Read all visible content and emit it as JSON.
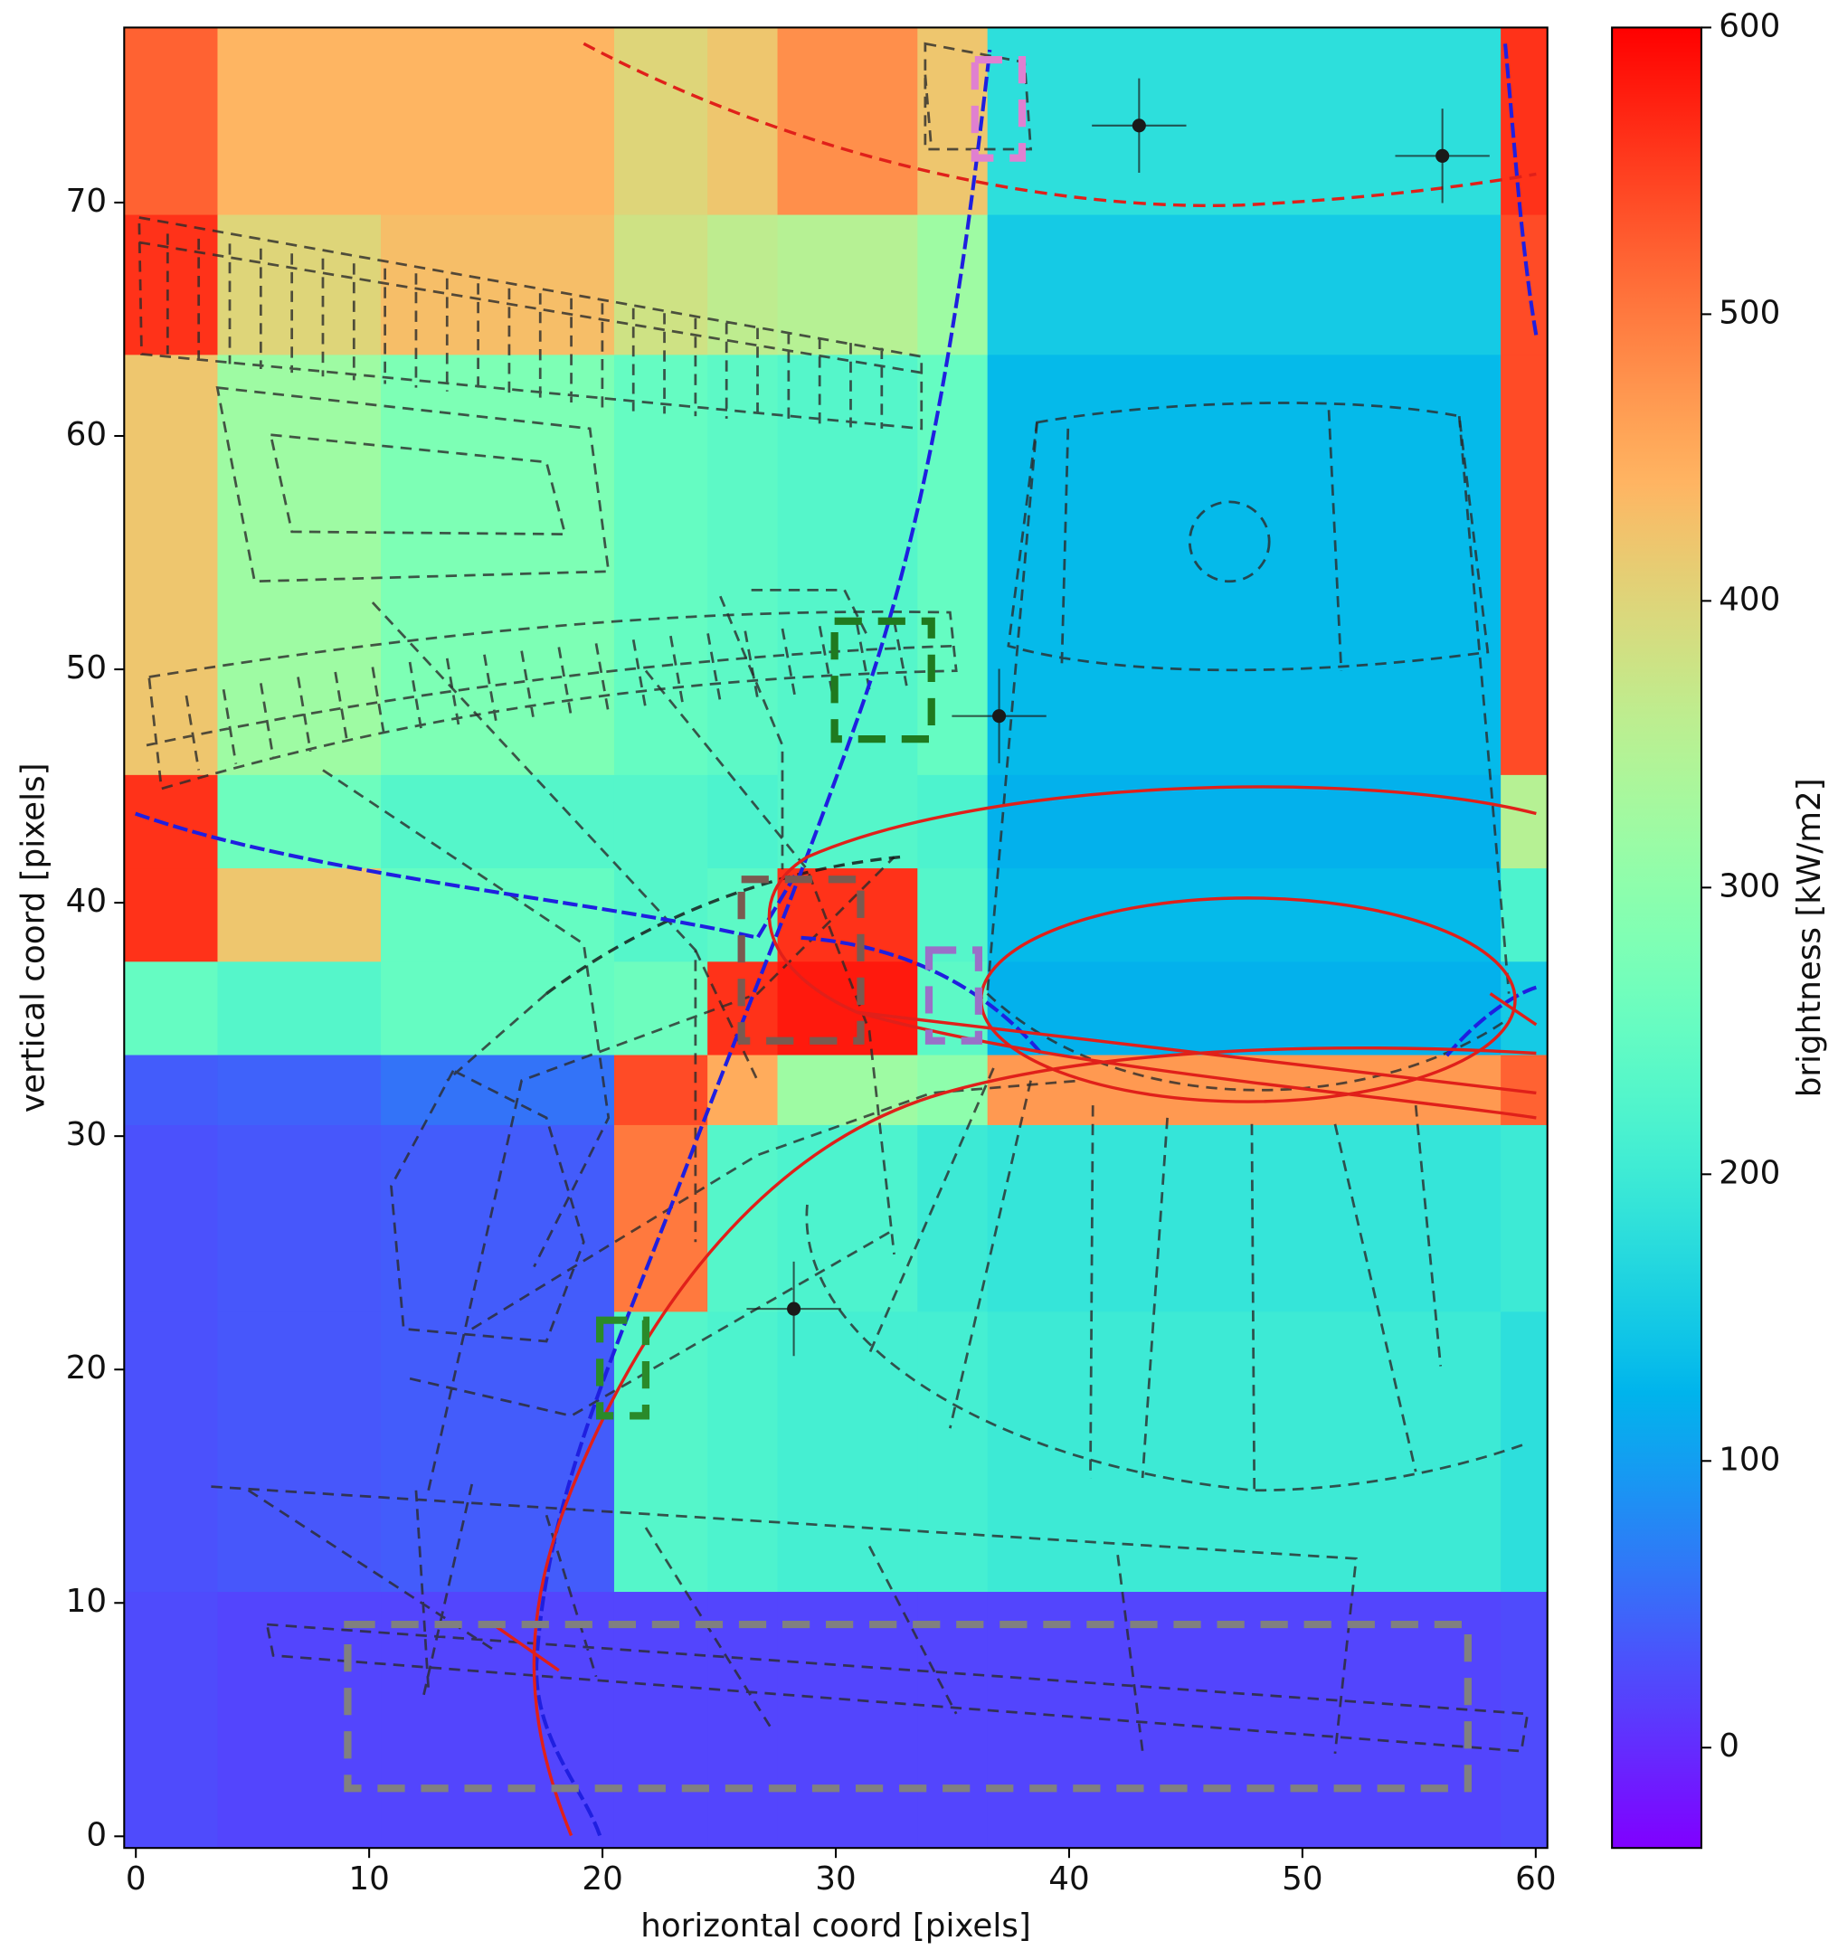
{
  "chart_data": {
    "type": "heatmap",
    "xlabel": "horizontal coord [pixels]",
    "ylabel": "vertical coord [pixels]",
    "colorbar_label": "brightness [kW/m2]",
    "colormap": "rainbow",
    "x_edges": [
      -0.5,
      3.5,
      10.5,
      20.5,
      24.5,
      27.5,
      33.5,
      36.5,
      58.5,
      60.5
    ],
    "y_edges": [
      -0.5,
      10.5,
      22.5,
      30.5,
      33.5,
      37.5,
      41.5,
      45.5,
      63.5,
      69.5,
      77.5
    ],
    "z": [
      [
        25,
        20,
        20,
        20,
        20,
        20,
        20,
        20,
        25
      ],
      [
        30,
        35,
        40,
        230,
        220,
        210,
        210,
        200,
        180
      ],
      [
        30,
        35,
        40,
        500,
        230,
        220,
        200,
        190,
        200
      ],
      [
        40,
        45,
        60,
        540,
        450,
        320,
        300,
        470,
        520
      ],
      [
        250,
        230,
        250,
        260,
        560,
        580,
        240,
        120,
        150
      ],
      [
        560,
        420,
        250,
        230,
        240,
        560,
        230,
        130,
        220
      ],
      [
        560,
        260,
        230,
        230,
        220,
        230,
        220,
        120,
        350
      ],
      [
        420,
        320,
        280,
        250,
        240,
        230,
        250,
        130,
        540
      ],
      [
        560,
        400,
        430,
        380,
        360,
        350,
        320,
        150,
        540
      ],
      [
        520,
        440,
        440,
        400,
        420,
        480,
        420,
        180,
        560
      ]
    ],
    "xlim": [
      -0.5,
      60.5
    ],
    "ylim": [
      -0.5,
      77.5
    ],
    "xticks": [
      0,
      10,
      20,
      30,
      40,
      50,
      60
    ],
    "yticks": [
      0,
      10,
      20,
      30,
      40,
      50,
      60,
      70
    ],
    "clim": [
      -35,
      600
    ],
    "cticks": [
      0,
      100,
      200,
      300,
      400,
      500,
      600
    ],
    "points": {
      "x": [
        43,
        56,
        37,
        28.2
      ],
      "y": [
        73.3,
        72,
        48,
        22.6
      ],
      "color": "#1a1a1a"
    }
  }
}
